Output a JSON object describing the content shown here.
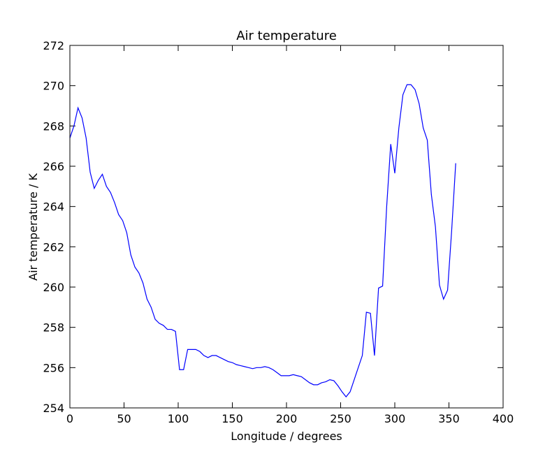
{
  "chart_data": {
    "type": "line",
    "title": "Air temperature",
    "x_label": "Longitude / degrees",
    "y_label": "Air temperature / K",
    "x": [
      0,
      3.75,
      7.5,
      11.25,
      15,
      18.75,
      22.5,
      26.25,
      30,
      33.75,
      37.5,
      41.25,
      45,
      48.75,
      52.5,
      56.25,
      60,
      63.75,
      67.5,
      71.25,
      75,
      78.75,
      82.5,
      86.25,
      90,
      93.75,
      97.5,
      101.25,
      105,
      108.75,
      112.5,
      116.25,
      120,
      123.75,
      127.5,
      131.25,
      135,
      138.75,
      142.5,
      146.25,
      150,
      153.75,
      157.5,
      161.25,
      165,
      168.75,
      172.5,
      176.25,
      180,
      183.75,
      187.5,
      191.25,
      195,
      198.75,
      202.5,
      206.25,
      210,
      213.75,
      217.5,
      221.25,
      225,
      228.75,
      232.5,
      236.25,
      240,
      243.75,
      247.5,
      251.25,
      255,
      258.75,
      262.5,
      266.25,
      270,
      273.75,
      277.5,
      281.25,
      285,
      288.75,
      292.5,
      296.25,
      300,
      303.75,
      307.5,
      311.25,
      315,
      318.75,
      322.5,
      326.25,
      330,
      333.75,
      337.5,
      341.25,
      345,
      348.75,
      352.5,
      356.25
    ],
    "series": [
      {
        "name": "Air temperature",
        "color": "#0000ff",
        "values": [
          267.4,
          268.0,
          268.9,
          268.4,
          267.4,
          265.7,
          264.9,
          265.3,
          265.6,
          265.0,
          264.7,
          264.2,
          263.6,
          263.3,
          262.7,
          261.6,
          261.0,
          260.7,
          260.2,
          259.4,
          259.0,
          258.4,
          258.2,
          258.1,
          257.9,
          257.9,
          257.8,
          255.9,
          255.9,
          256.9,
          256.9,
          256.9,
          256.8,
          256.6,
          256.5,
          256.6,
          256.6,
          256.5,
          256.4,
          256.3,
          256.25,
          256.15,
          256.1,
          256.05,
          256.0,
          255.95,
          256.0,
          256.0,
          256.05,
          256.0,
          255.9,
          255.75,
          255.6,
          255.6,
          255.6,
          255.65,
          255.6,
          255.55,
          255.4,
          255.25,
          255.15,
          255.15,
          255.25,
          255.3,
          255.4,
          255.35,
          255.1,
          254.8,
          254.55,
          254.8,
          255.4,
          256.0,
          256.6,
          258.75,
          258.7,
          256.6,
          259.95,
          260.05,
          264.0,
          267.1,
          265.65,
          267.9,
          269.55,
          270.05,
          270.05,
          269.8,
          269.1,
          267.9,
          267.3,
          264.6,
          263.0,
          260.1,
          259.4,
          259.85,
          262.8,
          266.15
        ]
      }
    ],
    "xlim": [
      0,
      400
    ],
    "xticks": [
      0,
      50,
      100,
      150,
      200,
      250,
      300,
      350,
      400
    ],
    "ylim": [
      254,
      272
    ],
    "yticks": [
      254,
      256,
      258,
      260,
      262,
      264,
      266,
      268,
      270,
      272
    ]
  }
}
